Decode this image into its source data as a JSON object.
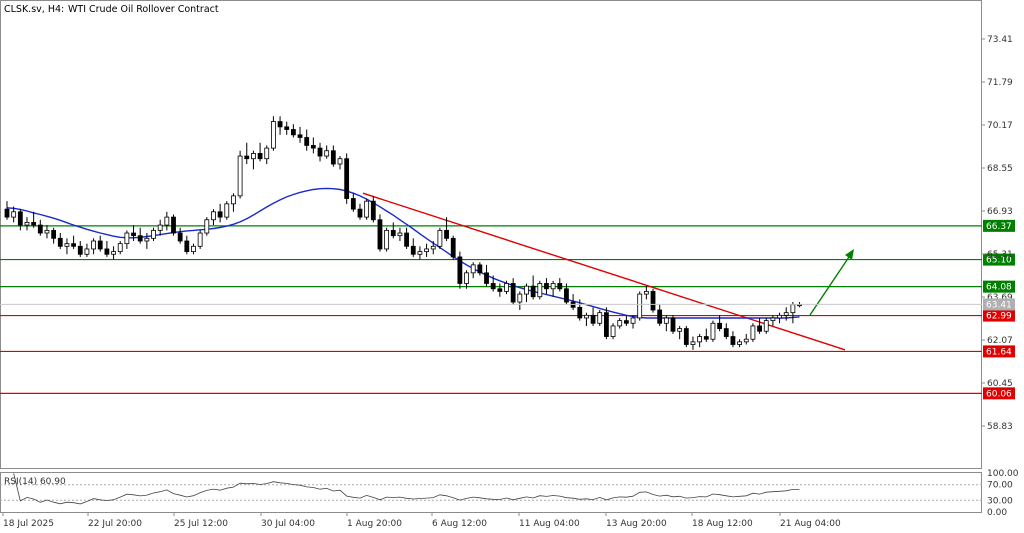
{
  "header": {
    "symbol": "CLSK.sv, H4:",
    "description": "WTI Crude Oil Rollover Contract"
  },
  "chart_data": {
    "type": "candlestick",
    "timeframe": "H4",
    "y_ticks": [
      "73.41",
      "71.79",
      "70.17",
      "68.55",
      "66.93",
      "65.31",
      "63.69",
      "62.07",
      "60.45",
      "58.83"
    ],
    "x_ticks": [
      "18 Jul 2025",
      "22 Jul 20:00",
      "25 Jul 12:00",
      "30 Jul 04:00",
      "1 Aug 20:00",
      "6 Aug 12:00",
      "11 Aug 04:00",
      "13 Aug 20:00",
      "18 Aug 12:00",
      "21 Aug 04:00"
    ],
    "current_price": "63.41",
    "resistance_levels": [
      {
        "label": "66.37",
        "value": 66.37,
        "color": "#008000"
      },
      {
        "label": "65.10",
        "value": 65.1,
        "color": "#008000"
      },
      {
        "label": "64.08",
        "value": 64.08,
        "color": "#008000"
      }
    ],
    "support_levels": [
      {
        "label": "62.99",
        "value": 62.99,
        "color": "#e00000"
      },
      {
        "label": "61.64",
        "value": 61.64,
        "color": "#e00000"
      },
      {
        "label": "60.06",
        "value": 60.06,
        "color": "#e00000"
      }
    ],
    "trendline": {
      "color": "#e00000",
      "start_value": 67.6,
      "end_value": 61.7
    },
    "projection_arrow": {
      "color": "#008000",
      "direction": "up"
    },
    "moving_average": {
      "color": "#1a2acc"
    },
    "candles": [
      [
        67.0,
        67.3,
        66.6,
        66.7
      ],
      [
        66.7,
        67.1,
        66.5,
        66.9
      ],
      [
        66.9,
        67.0,
        66.2,
        66.4
      ],
      [
        66.4,
        66.7,
        66.2,
        66.5
      ],
      [
        66.5,
        66.9,
        66.3,
        66.4
      ],
      [
        66.4,
        66.6,
        66.0,
        66.1
      ],
      [
        66.1,
        66.4,
        65.9,
        66.2
      ],
      [
        66.2,
        66.3,
        65.7,
        65.9
      ],
      [
        65.9,
        66.1,
        65.5,
        65.6
      ],
      [
        65.6,
        65.9,
        65.3,
        65.7
      ],
      [
        65.7,
        66.0,
        65.5,
        65.6
      ],
      [
        65.6,
        65.8,
        65.2,
        65.3
      ],
      [
        65.3,
        65.7,
        65.2,
        65.5
      ],
      [
        65.5,
        65.9,
        65.3,
        65.8
      ],
      [
        65.8,
        66.0,
        65.4,
        65.5
      ],
      [
        65.5,
        65.8,
        65.2,
        65.3
      ],
      [
        65.3,
        65.6,
        65.1,
        65.4
      ],
      [
        65.4,
        65.8,
        65.3,
        65.7
      ],
      [
        65.7,
        66.2,
        65.5,
        66.1
      ],
      [
        66.1,
        66.4,
        65.8,
        66.0
      ],
      [
        66.0,
        66.3,
        65.7,
        65.8
      ],
      [
        65.8,
        66.1,
        65.5,
        65.9
      ],
      [
        65.9,
        66.3,
        65.8,
        66.2
      ],
      [
        66.2,
        66.6,
        66.0,
        66.4
      ],
      [
        66.4,
        66.9,
        66.2,
        66.7
      ],
      [
        66.7,
        66.8,
        66.0,
        66.1
      ],
      [
        66.1,
        66.3,
        65.7,
        65.8
      ],
      [
        65.8,
        66.0,
        65.3,
        65.4
      ],
      [
        65.4,
        65.7,
        65.3,
        65.6
      ],
      [
        65.6,
        66.2,
        65.5,
        66.1
      ],
      [
        66.1,
        66.7,
        66.0,
        66.6
      ],
      [
        66.6,
        67.0,
        66.4,
        66.9
      ],
      [
        66.9,
        67.2,
        66.5,
        66.7
      ],
      [
        66.7,
        67.3,
        66.6,
        67.2
      ],
      [
        67.2,
        67.6,
        66.9,
        67.5
      ],
      [
        67.5,
        69.2,
        67.4,
        69.0
      ],
      [
        69.0,
        69.5,
        68.7,
        68.9
      ],
      [
        68.9,
        69.2,
        68.5,
        69.1
      ],
      [
        69.1,
        69.5,
        68.8,
        68.9
      ],
      [
        68.9,
        69.4,
        68.7,
        69.3
      ],
      [
        69.3,
        70.5,
        69.2,
        70.3
      ],
      [
        70.3,
        70.5,
        69.8,
        70.1
      ],
      [
        70.1,
        70.3,
        69.8,
        70.0
      ],
      [
        70.0,
        70.2,
        69.7,
        69.8
      ],
      [
        69.8,
        70.1,
        69.5,
        69.7
      ],
      [
        69.7,
        70.0,
        69.2,
        69.4
      ],
      [
        69.4,
        69.7,
        69.1,
        69.3
      ],
      [
        69.3,
        69.5,
        68.8,
        69.0
      ],
      [
        69.0,
        69.4,
        68.9,
        69.2
      ],
      [
        69.2,
        69.4,
        68.6,
        68.7
      ],
      [
        68.7,
        69.0,
        68.5,
        68.9
      ],
      [
        68.9,
        69.1,
        67.2,
        67.4
      ],
      [
        67.4,
        67.6,
        66.9,
        67.0
      ],
      [
        67.0,
        67.2,
        66.6,
        66.7
      ],
      [
        66.7,
        67.4,
        66.6,
        67.3
      ],
      [
        67.3,
        67.5,
        66.5,
        66.6
      ],
      [
        66.6,
        66.8,
        65.4,
        65.5
      ],
      [
        65.5,
        66.3,
        65.4,
        66.2
      ],
      [
        66.2,
        66.5,
        65.9,
        66.0
      ],
      [
        66.0,
        66.3,
        65.8,
        66.1
      ],
      [
        66.1,
        66.3,
        65.5,
        65.6
      ],
      [
        65.6,
        65.9,
        65.2,
        65.3
      ],
      [
        65.3,
        65.6,
        65.1,
        65.4
      ],
      [
        65.4,
        65.7,
        65.2,
        65.5
      ],
      [
        65.5,
        65.8,
        65.3,
        65.6
      ],
      [
        65.6,
        66.3,
        65.5,
        66.2
      ],
      [
        66.2,
        66.7,
        65.8,
        65.9
      ],
      [
        65.9,
        66.0,
        65.1,
        65.2
      ],
      [
        65.2,
        65.4,
        64.0,
        64.2
      ],
      [
        64.2,
        64.7,
        64.0,
        64.6
      ],
      [
        64.6,
        65.0,
        64.4,
        64.9
      ],
      [
        64.9,
        65.0,
        64.5,
        64.6
      ],
      [
        64.6,
        64.9,
        64.1,
        64.2
      ],
      [
        64.2,
        64.5,
        63.9,
        64.0
      ],
      [
        64.0,
        64.2,
        63.7,
        63.9
      ],
      [
        63.9,
        64.3,
        63.8,
        64.2
      ],
      [
        64.2,
        64.4,
        63.4,
        63.5
      ],
      [
        63.5,
        63.9,
        63.2,
        63.8
      ],
      [
        63.8,
        64.2,
        63.5,
        64.1
      ],
      [
        64.1,
        64.5,
        63.6,
        63.7
      ],
      [
        63.7,
        64.3,
        63.6,
        64.2
      ],
      [
        64.2,
        64.4,
        63.8,
        64.0
      ],
      [
        64.0,
        64.3,
        63.7,
        64.2
      ],
      [
        64.2,
        64.4,
        63.9,
        64.0
      ],
      [
        64.0,
        64.2,
        63.4,
        63.5
      ],
      [
        63.5,
        63.8,
        63.2,
        63.3
      ],
      [
        63.3,
        63.6,
        62.8,
        62.9
      ],
      [
        62.9,
        63.1,
        62.6,
        63.0
      ],
      [
        63.0,
        63.3,
        62.6,
        62.7
      ],
      [
        62.7,
        63.2,
        62.6,
        63.1
      ],
      [
        63.1,
        63.3,
        62.1,
        62.2
      ],
      [
        62.2,
        62.7,
        62.1,
        62.6
      ],
      [
        62.6,
        62.9,
        62.5,
        62.8
      ],
      [
        62.8,
        63.0,
        62.6,
        62.7
      ],
      [
        62.7,
        63.0,
        62.5,
        62.9
      ],
      [
        62.9,
        63.9,
        62.8,
        63.8
      ],
      [
        63.8,
        64.1,
        63.6,
        63.9
      ],
      [
        63.9,
        64.0,
        63.1,
        63.2
      ],
      [
        63.2,
        63.4,
        62.6,
        62.7
      ],
      [
        62.7,
        63.0,
        62.4,
        62.9
      ],
      [
        62.9,
        63.0,
        62.3,
        62.4
      ],
      [
        62.4,
        62.6,
        62.1,
        62.5
      ],
      [
        62.5,
        62.6,
        61.8,
        61.9
      ],
      [
        61.9,
        62.2,
        61.7,
        62.0
      ],
      [
        62.0,
        62.3,
        61.8,
        62.2
      ],
      [
        62.2,
        62.5,
        62.0,
        62.1
      ],
      [
        62.1,
        62.8,
        62.0,
        62.7
      ],
      [
        62.7,
        63.0,
        62.4,
        62.5
      ],
      [
        62.5,
        62.7,
        62.1,
        62.2
      ],
      [
        62.2,
        62.4,
        61.8,
        61.9
      ],
      [
        61.9,
        62.1,
        61.8,
        62.0
      ],
      [
        62.0,
        62.3,
        61.9,
        62.1
      ],
      [
        62.1,
        62.7,
        62.0,
        62.6
      ],
      [
        62.6,
        62.9,
        62.3,
        62.4
      ],
      [
        62.4,
        62.9,
        62.3,
        62.8
      ],
      [
        62.8,
        63.0,
        62.6,
        62.9
      ],
      [
        62.9,
        63.1,
        62.7,
        63.0
      ],
      [
        63.0,
        63.3,
        62.8,
        63.1
      ],
      [
        63.1,
        63.5,
        62.7,
        63.4
      ],
      [
        63.4,
        63.5,
        63.3,
        63.4
      ]
    ],
    "ma_values": [
      67.05,
      67.03,
      66.99,
      66.93,
      66.86,
      66.8,
      66.73,
      66.66,
      66.58,
      66.49,
      66.4,
      66.32,
      66.24,
      66.17,
      66.1,
      66.04,
      65.98,
      65.94,
      65.92,
      65.92,
      65.94,
      65.97,
      66.0,
      66.04,
      66.08,
      66.12,
      66.15,
      66.18,
      66.2,
      66.22,
      66.24,
      66.27,
      66.31,
      66.36,
      66.43,
      66.52,
      66.64,
      66.78,
      66.93,
      67.08,
      67.22,
      67.35,
      67.46,
      67.55,
      67.63,
      67.69,
      67.74,
      67.77,
      67.78,
      67.77,
      67.74,
      67.68,
      67.6,
      67.5,
      67.38,
      67.24,
      67.09,
      66.93,
      66.77,
      66.6,
      66.43,
      66.25,
      66.07,
      65.89,
      65.72,
      65.55,
      65.38,
      65.21,
      65.05,
      64.9,
      64.76,
      64.63,
      64.51,
      64.4,
      64.3,
      64.21,
      64.12,
      64.04,
      63.97,
      63.9,
      63.84,
      63.78,
      63.72,
      63.66,
      63.6,
      63.54,
      63.47,
      63.4,
      63.33,
      63.26,
      63.19,
      63.12,
      63.06,
      63.0,
      62.95,
      62.92,
      62.9,
      62.9,
      62.9,
      62.9,
      62.9,
      62.9,
      62.9,
      62.9,
      62.9,
      62.9,
      62.9,
      62.9,
      62.9,
      62.9,
      62.9,
      62.9,
      62.9,
      62.9,
      62.9,
      62.9,
      62.9,
      62.9,
      62.92,
      62.94
    ],
    "rsi": {
      "label": "RSI(14) 60.90",
      "value": 60.9,
      "levels": [
        70,
        30
      ],
      "y_ticks": [
        "100.00",
        "70.00",
        "30.00",
        "0.00"
      ]
    }
  }
}
